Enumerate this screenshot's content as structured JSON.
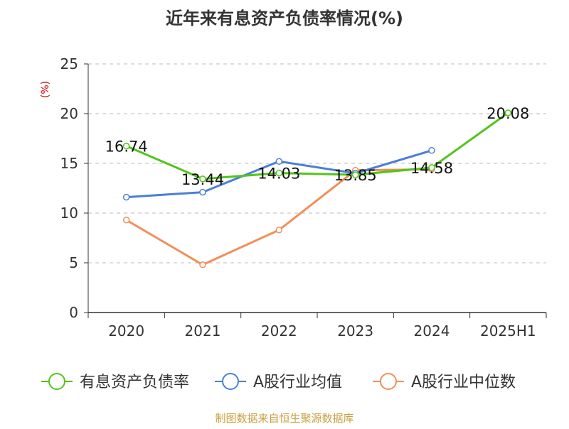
{
  "chart_data": {
    "type": "line",
    "title": "近年来有息资产负债率情况(%)",
    "ylabel": "(%)",
    "xlabel": "",
    "categories": [
      "2020",
      "2021",
      "2022",
      "2023",
      "2024",
      "2025H1"
    ],
    "ylim": [
      0,
      25
    ],
    "yticks": [
      0,
      5,
      10,
      15,
      20,
      25
    ],
    "grid": true,
    "legend_position": "bottom",
    "series": [
      {
        "name": "有息资产负债率",
        "color": "#52c41a",
        "values": [
          16.74,
          13.44,
          14.03,
          13.85,
          14.58,
          20.08
        ],
        "labels": [
          "16.74",
          "13.44",
          "14.03",
          "13.85",
          "14.58",
          "20.08"
        ]
      },
      {
        "name": "A股行业均值",
        "color": "#4a7fd6",
        "values": [
          11.6,
          12.1,
          15.2,
          14.0,
          16.3,
          null
        ]
      },
      {
        "name": "A股行业中位数",
        "color": "#f28e5a",
        "values": [
          9.3,
          4.8,
          8.3,
          14.3,
          14.4,
          null
        ]
      }
    ],
    "source": "制图数据来自恒生聚源数据库"
  }
}
